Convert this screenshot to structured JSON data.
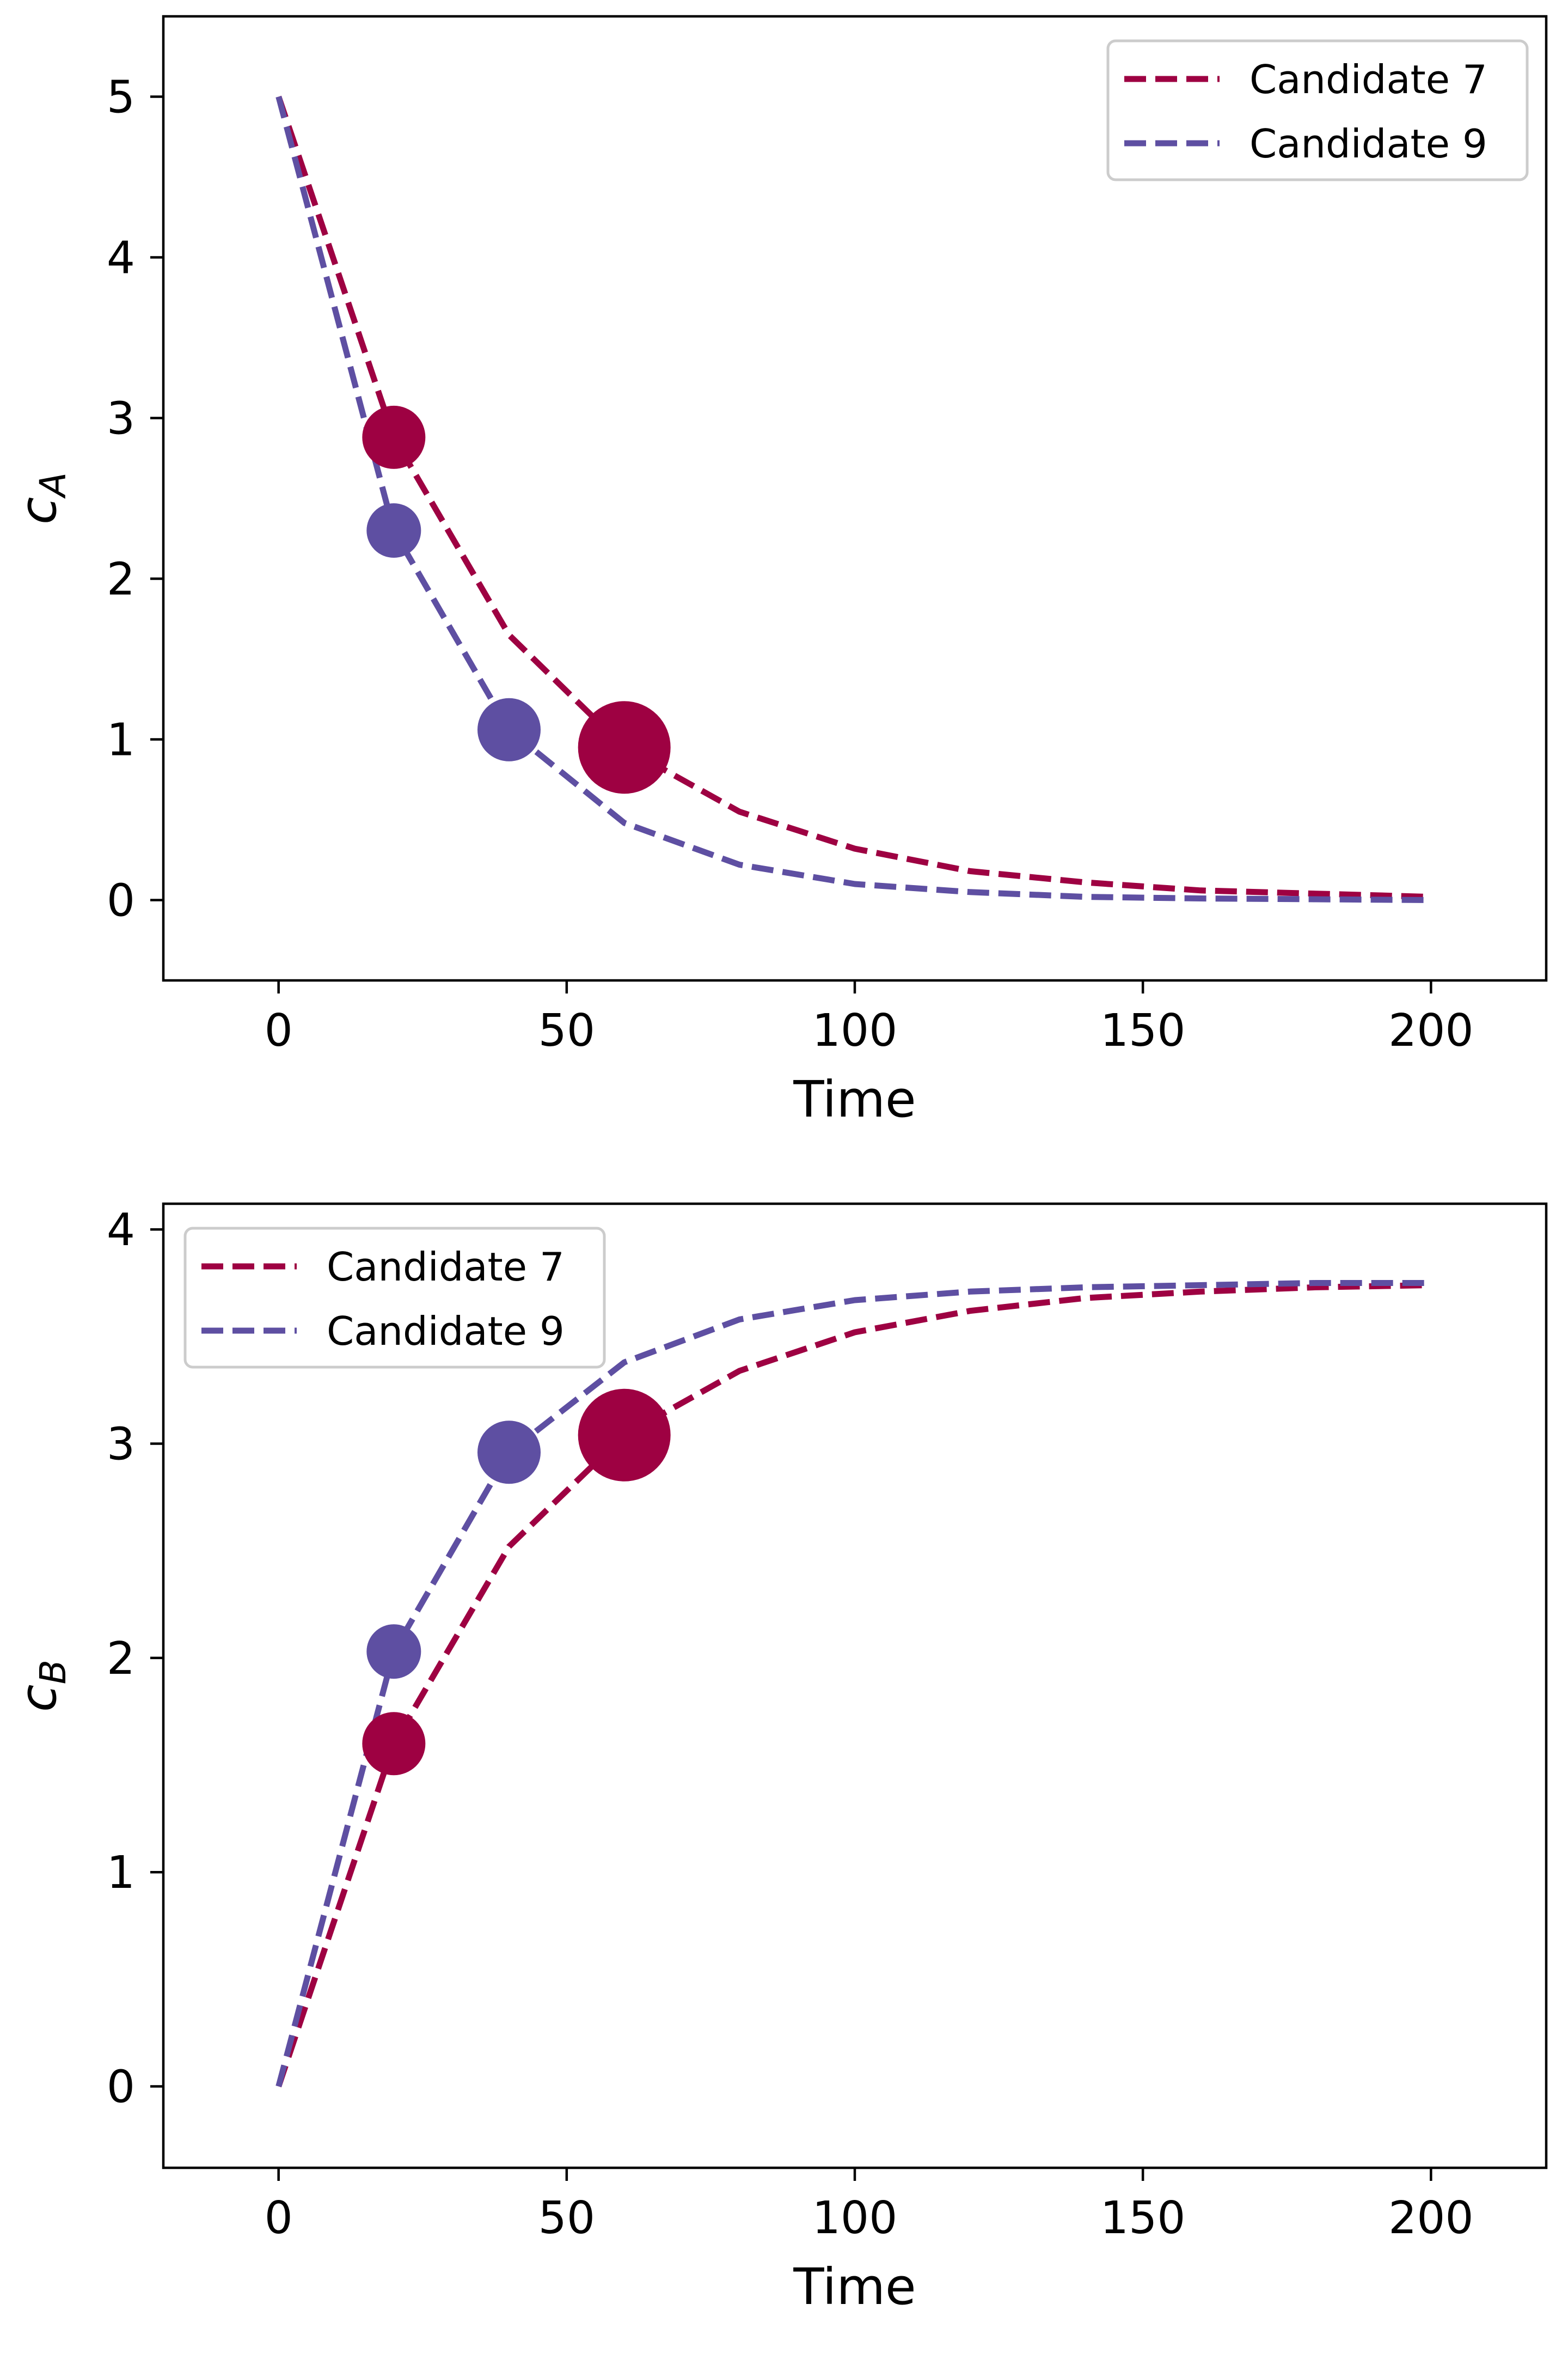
{
  "chart_data": [
    {
      "type": "line",
      "xlabel": "Time",
      "ylabel": "c",
      "ylabel_sub": "A",
      "xlim": [
        -20,
        220
      ],
      "ylim": [
        -0.5,
        5.5
      ],
      "xticks": [
        "0",
        "50",
        "100",
        "150",
        "200"
      ],
      "yticks": [
        "0",
        "1",
        "2",
        "3",
        "4",
        "5"
      ],
      "legend_position": "top-right",
      "series": [
        {
          "name": "Candidate 7",
          "color": "#9e0142",
          "style": "dashed",
          "x": [
            0,
            20,
            40,
            60,
            80,
            100,
            120,
            140,
            160,
            180,
            200
          ],
          "y": [
            5.0,
            2.88,
            1.65,
            0.95,
            0.55,
            0.32,
            0.18,
            0.11,
            0.06,
            0.04,
            0.02
          ],
          "markers": [
            {
              "x": 20,
              "y": 2.88,
              "size": "medium"
            },
            {
              "x": 60,
              "y": 0.95,
              "size": "large"
            }
          ]
        },
        {
          "name": "Candidate 9",
          "color": "#5e4fa2",
          "style": "dashed",
          "x": [
            0,
            20,
            40,
            60,
            80,
            100,
            120,
            140,
            160,
            180,
            200
          ],
          "y": [
            5.0,
            2.3,
            1.06,
            0.48,
            0.22,
            0.1,
            0.05,
            0.02,
            0.01,
            0.005,
            0.0
          ],
          "markers": [
            {
              "x": 20,
              "y": 2.3,
              "size": "small"
            },
            {
              "x": 40,
              "y": 1.06,
              "size": "medium"
            }
          ]
        }
      ]
    },
    {
      "type": "line",
      "xlabel": "Time",
      "ylabel": "c",
      "ylabel_sub": "B",
      "xlim": [
        -20,
        220
      ],
      "ylim": [
        -0.38,
        4.12
      ],
      "xticks": [
        "0",
        "50",
        "100",
        "150",
        "200"
      ],
      "yticks": [
        "0",
        "1",
        "2",
        "3",
        "4"
      ],
      "legend_position": "top-left",
      "series": [
        {
          "name": "Candidate 7",
          "color": "#9e0142",
          "style": "dashed",
          "x": [
            0,
            20,
            40,
            60,
            80,
            100,
            120,
            140,
            160,
            180,
            200
          ],
          "y": [
            0.0,
            1.6,
            2.52,
            3.04,
            3.34,
            3.52,
            3.62,
            3.68,
            3.71,
            3.73,
            3.74
          ],
          "markers": [
            {
              "x": 20,
              "y": 1.6,
              "size": "medium"
            },
            {
              "x": 60,
              "y": 3.04,
              "size": "large"
            }
          ]
        },
        {
          "name": "Candidate 9",
          "color": "#5e4fa2",
          "style": "dashed",
          "x": [
            0,
            20,
            40,
            60,
            80,
            100,
            120,
            140,
            160,
            180,
            200
          ],
          "y": [
            0.0,
            2.03,
            2.96,
            3.38,
            3.58,
            3.67,
            3.71,
            3.73,
            3.74,
            3.75,
            3.75
          ],
          "markers": [
            {
              "x": 20,
              "y": 2.03,
              "size": "small"
            },
            {
              "x": 40,
              "y": 2.96,
              "size": "medium"
            }
          ]
        }
      ]
    }
  ]
}
